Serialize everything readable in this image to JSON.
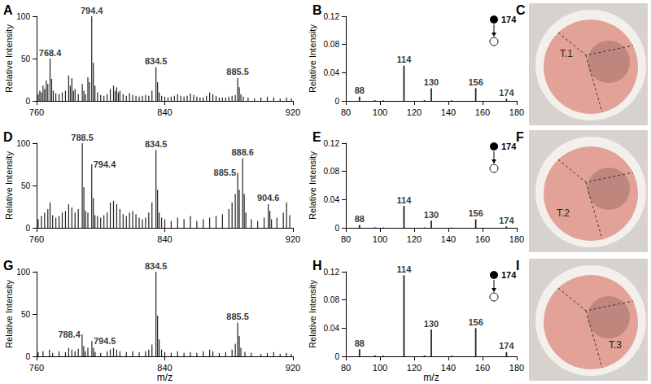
{
  "chart_data": [
    {
      "panel": "A",
      "type": "bar",
      "color": "#222222",
      "x": [
        761,
        762,
        763,
        764,
        765,
        766,
        767,
        768.4,
        769.4,
        770.4,
        772,
        774,
        776,
        778,
        780,
        781,
        782,
        783,
        784,
        786,
        788.5,
        789.5,
        790.5,
        792,
        793,
        794.4,
        795.4,
        796.4,
        798,
        800,
        802,
        804,
        806,
        808,
        809,
        810,
        811,
        812,
        814,
        816,
        818,
        820,
        822,
        824,
        826,
        828,
        830,
        832,
        834.5,
        835.5,
        836.5,
        838,
        840,
        842,
        844,
        846,
        848,
        850,
        852,
        854,
        856,
        858,
        860,
        862,
        864,
        866,
        868,
        870,
        872,
        874,
        876,
        878,
        880,
        882,
        884,
        885.5,
        886.5,
        887.5,
        889,
        892,
        896,
        900,
        904,
        908,
        912,
        916,
        919
      ],
      "values": [
        8,
        12,
        10,
        18,
        14,
        24,
        20,
        50,
        26,
        12,
        9,
        8,
        10,
        12,
        30,
        18,
        27,
        12,
        14,
        8,
        20,
        12,
        8,
        28,
        22,
        100,
        45,
        18,
        10,
        7,
        6,
        8,
        14,
        18,
        12,
        16,
        10,
        12,
        8,
        6,
        9,
        7,
        6,
        5,
        6,
        7,
        6,
        12,
        40,
        22,
        10,
        6,
        5,
        4,
        5,
        6,
        8,
        6,
        5,
        6,
        9,
        7,
        5,
        4,
        4,
        6,
        10,
        8,
        6,
        4,
        4,
        4,
        5,
        6,
        7,
        27,
        16,
        8,
        5,
        4,
        3,
        4,
        5,
        4,
        3,
        4,
        3
      ],
      "xlim": [
        760,
        920
      ],
      "xticks": [
        760,
        840,
        920
      ],
      "ylim": [
        0,
        100
      ],
      "yticks": [
        0,
        50,
        100
      ],
      "ylabel": "Relative Intensity",
      "annotations": [
        {
          "x": 768.4,
          "y": 50,
          "text": "768.4"
        },
        {
          "x": 794.4,
          "y": 100,
          "text": "794.4"
        },
        {
          "x": 834.5,
          "y": 40,
          "text": "834.5"
        },
        {
          "x": 885.5,
          "y": 27,
          "text": "885.5"
        }
      ]
    },
    {
      "panel": "B",
      "type": "bar",
      "color": "#222222",
      "x": [
        88,
        97,
        102,
        114,
        126,
        130,
        142,
        156,
        174
      ],
      "values": [
        0.006,
        0.001,
        0.0008,
        0.05,
        0.001,
        0.018,
        0.0008,
        0.018,
        0.003
      ],
      "xlim": [
        80,
        180
      ],
      "xticks": [
        80,
        100,
        120,
        140,
        160,
        180
      ],
      "ylim": [
        0,
        0.12
      ],
      "yticks": [
        0,
        0.04,
        0.08,
        0.12
      ],
      "ylabel": "Relative Intensity",
      "precursor": "174",
      "annotations": [
        {
          "x": 88,
          "y": 0.006,
          "text": "88"
        },
        {
          "x": 114,
          "y": 0.05,
          "text": "114"
        },
        {
          "x": 130,
          "y": 0.018,
          "text": "130"
        },
        {
          "x": 156,
          "y": 0.018,
          "text": "156"
        },
        {
          "x": 174,
          "y": 0.003,
          "text": "174"
        }
      ]
    },
    {
      "panel": "D",
      "type": "bar",
      "color": "#222222",
      "x": [
        761,
        763,
        765,
        767,
        768.4,
        770,
        772,
        774,
        776,
        778,
        780,
        782,
        784,
        786,
        788.5,
        789.5,
        790.5,
        792,
        794.4,
        795.4,
        796.4,
        798,
        800,
        802,
        804,
        806,
        808,
        810,
        812,
        814,
        816,
        818,
        820,
        822,
        824,
        826,
        828,
        830,
        832,
        834.5,
        835.5,
        836.5,
        838,
        840,
        844,
        848,
        852,
        856,
        860,
        864,
        868,
        872,
        876,
        880,
        882,
        884,
        885.5,
        886.5,
        888.6,
        889.6,
        890.6,
        894,
        898,
        902,
        904.6,
        905.6,
        906.6,
        910,
        914,
        916,
        918
      ],
      "values": [
        10,
        14,
        18,
        22,
        30,
        15,
        12,
        14,
        18,
        20,
        28,
        24,
        18,
        22,
        100,
        48,
        20,
        18,
        75,
        35,
        15,
        14,
        12,
        15,
        18,
        30,
        32,
        28,
        22,
        16,
        14,
        18,
        20,
        16,
        12,
        10,
        12,
        18,
        30,
        92,
        45,
        18,
        12,
        10,
        8,
        12,
        10,
        14,
        8,
        10,
        12,
        14,
        16,
        22,
        30,
        40,
        65,
        45,
        82,
        40,
        18,
        10,
        8,
        12,
        28,
        20,
        10,
        12,
        18,
        30,
        15
      ],
      "xlim": [
        760,
        920
      ],
      "xticks": [
        760,
        840,
        920
      ],
      "ylim": [
        0,
        100
      ],
      "yticks": [
        0,
        50,
        100
      ],
      "ylabel": "Relative Intensity",
      "annotations": [
        {
          "x": 788.5,
          "y": 100,
          "text": "788.5"
        },
        {
          "x": 794.4,
          "y": 75,
          "text": "794.4",
          "position": "right"
        },
        {
          "x": 834.5,
          "y": 92,
          "text": "834.5"
        },
        {
          "x": 885.5,
          "y": 65,
          "text": "885.5",
          "position": "left"
        },
        {
          "x": 888.6,
          "y": 82,
          "text": "888.6"
        },
        {
          "x": 904.6,
          "y": 28,
          "text": "904.6"
        }
      ]
    },
    {
      "panel": "E",
      "type": "bar",
      "color": "#222222",
      "x": [
        88,
        97,
        102,
        114,
        126,
        130,
        142,
        156,
        174
      ],
      "values": [
        0.004,
        0.0007,
        0.0005,
        0.031,
        0.0006,
        0.01,
        0.0005,
        0.012,
        0.002
      ],
      "xlim": [
        80,
        180
      ],
      "xticks": [
        80,
        100,
        120,
        140,
        160,
        180
      ],
      "ylim": [
        0,
        0.12
      ],
      "yticks": [
        0,
        0.04,
        0.08,
        0.12
      ],
      "ylabel": "Relative Intensity",
      "precursor": "174",
      "annotations": [
        {
          "x": 88,
          "y": 0.004,
          "text": "88"
        },
        {
          "x": 114,
          "y": 0.031,
          "text": "114"
        },
        {
          "x": 130,
          "y": 0.01,
          "text": "130"
        },
        {
          "x": 156,
          "y": 0.012,
          "text": "156"
        },
        {
          "x": 174,
          "y": 0.002,
          "text": "174"
        }
      ]
    },
    {
      "panel": "G",
      "type": "bar",
      "color": "#222222",
      "x": [
        761,
        764,
        768,
        770,
        774,
        778,
        780,
        782,
        784,
        786,
        788.4,
        789.4,
        790.4,
        792,
        794.5,
        795.5,
        796.5,
        800,
        804,
        806,
        808,
        810,
        812,
        816,
        820,
        824,
        828,
        830,
        832,
        834.5,
        835.5,
        836.5,
        838,
        840,
        844,
        848,
        852,
        856,
        860,
        864,
        868,
        870,
        874,
        878,
        882,
        884,
        885.5,
        886.5,
        887.5,
        890,
        894,
        900,
        904,
        908,
        912,
        916,
        919
      ],
      "values": [
        5,
        6,
        8,
        4,
        6,
        5,
        10,
        8,
        6,
        9,
        26,
        12,
        6,
        10,
        18,
        10,
        5,
        4,
        6,
        8,
        10,
        8,
        6,
        5,
        6,
        5,
        6,
        8,
        14,
        100,
        48,
        20,
        8,
        5,
        4,
        6,
        4,
        5,
        4,
        6,
        8,
        6,
        4,
        5,
        8,
        15,
        40,
        24,
        10,
        5,
        4,
        3,
        4,
        5,
        3,
        4,
        3
      ],
      "xlim": [
        760,
        920
      ],
      "xticks": [
        760,
        840,
        920
      ],
      "ylim": [
        0,
        100
      ],
      "yticks": [
        0,
        50,
        100
      ],
      "xlabel": "m/z",
      "ylabel": "Relative Intensity",
      "annotations": [
        {
          "x": 788.4,
          "y": 26,
          "text": "788.4",
          "position": "left"
        },
        {
          "x": 794.5,
          "y": 18,
          "text": "794.5",
          "position": "right"
        },
        {
          "x": 834.5,
          "y": 100,
          "text": "834.5"
        },
        {
          "x": 885.5,
          "y": 40,
          "text": "885.5"
        }
      ]
    },
    {
      "panel": "H",
      "type": "bar",
      "color": "#222222",
      "x": [
        88,
        97,
        102,
        114,
        126,
        130,
        142,
        156,
        174
      ],
      "values": [
        0.01,
        0.0015,
        0.001,
        0.115,
        0.0012,
        0.038,
        0.001,
        0.04,
        0.006
      ],
      "xlim": [
        80,
        180
      ],
      "xticks": [
        80,
        100,
        120,
        140,
        160,
        180
      ],
      "ylim": [
        0,
        0.12
      ],
      "yticks": [
        0,
        0.04,
        0.08,
        0.12
      ],
      "xlabel": "m/z",
      "ylabel": "Relative Intensity",
      "precursor": "174",
      "annotations": [
        {
          "x": 88,
          "y": 0.01,
          "text": "88"
        },
        {
          "x": 114,
          "y": 0.115,
          "text": "114"
        },
        {
          "x": 130,
          "y": 0.038,
          "text": "130"
        },
        {
          "x": 156,
          "y": 0.04,
          "text": "156"
        },
        {
          "x": 174,
          "y": 0.006,
          "text": "174"
        }
      ]
    }
  ],
  "photos": [
    {
      "panel": "C",
      "label": "T.1"
    },
    {
      "panel": "F",
      "label": "T.2"
    },
    {
      "panel": "I",
      "label": "T.3"
    }
  ]
}
